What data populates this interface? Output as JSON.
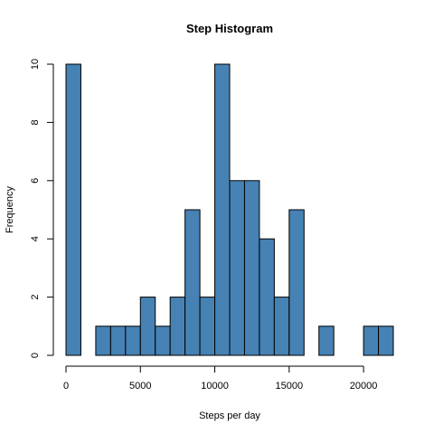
{
  "chart_data": {
    "type": "bar",
    "title": "Step Histogram",
    "xlabel": "Steps per day",
    "ylabel": "Frequency",
    "bin_width": 1000,
    "bin_starts": [
      0,
      1000,
      2000,
      3000,
      4000,
      5000,
      6000,
      7000,
      8000,
      9000,
      10000,
      11000,
      12000,
      13000,
      14000,
      15000,
      16000,
      17000,
      18000,
      19000,
      20000,
      21000
    ],
    "values": [
      10,
      0,
      1,
      1,
      1,
      2,
      1,
      2,
      5,
      2,
      10,
      6,
      6,
      4,
      2,
      5,
      0,
      1,
      0,
      0,
      1,
      1
    ],
    "xlim": [
      0,
      22000
    ],
    "ylim": [
      0,
      10
    ],
    "x_ticks": [
      0,
      5000,
      10000,
      15000,
      20000
    ],
    "y_ticks": [
      0,
      2,
      4,
      6,
      8,
      10
    ],
    "x_tick_labels": [
      "0",
      "5000",
      "10000",
      "15000",
      "20000"
    ],
    "y_tick_labels": [
      "0",
      "2",
      "4",
      "6",
      "8",
      "10"
    ],
    "bar_color": "#4682B4",
    "grid": false,
    "legend": "none"
  }
}
